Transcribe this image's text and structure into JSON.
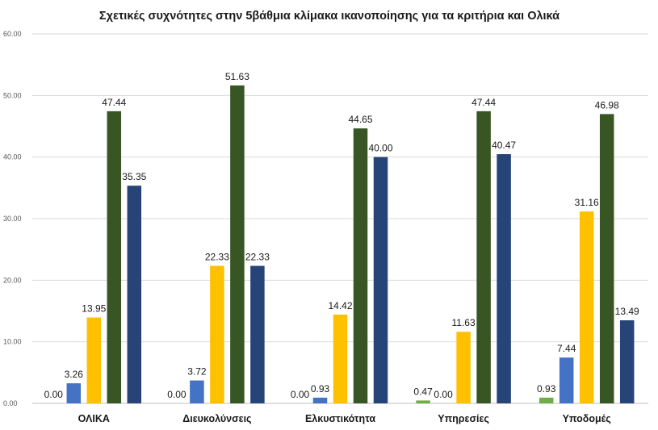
{
  "chart_data": {
    "type": "bar",
    "title": "Σχετικές συχνότητες στην 5βάθμια κλίμακα ικανοποίησης για τα κριτήρια και Ολικά",
    "xlabel": "",
    "ylabel": "",
    "ylim": [
      0,
      60
    ],
    "yticks": [
      "0.00",
      "10.00",
      "20.00",
      "30.00",
      "40.00",
      "50.00",
      "60.00"
    ],
    "ytick_values": [
      0,
      10,
      20,
      30,
      40,
      50,
      60
    ],
    "grid": true,
    "legend": "none",
    "categories": [
      "ΟΛΙΚΑ",
      "Διευκολύνσεις",
      "Ελκυστικότητα",
      "Υπηρεσίες",
      "Υποδομές"
    ],
    "series": [
      {
        "color": "#70ad47",
        "values": [
          0.0,
          0.0,
          0.0,
          0.47,
          0.93
        ],
        "labels": [
          "0.00",
          "0.00",
          "0.00",
          "0.47",
          "0.93"
        ]
      },
      {
        "color": "#4472c4",
        "values": [
          3.26,
          3.72,
          0.93,
          0.0,
          7.44
        ],
        "labels": [
          "3.26",
          "3.72",
          "0.93",
          "0.00",
          "7.44"
        ]
      },
      {
        "color": "#ffc000",
        "values": [
          13.95,
          22.33,
          14.42,
          11.63,
          31.16
        ],
        "labels": [
          "13.95",
          "22.33",
          "14.42",
          "11.63",
          "31.16"
        ]
      },
      {
        "color": "#375623",
        "values": [
          47.44,
          51.63,
          44.65,
          47.44,
          46.98
        ],
        "labels": [
          "47.44",
          "51.63",
          "44.65",
          "47.44",
          "46.98"
        ]
      },
      {
        "color": "#264478",
        "values": [
          35.35,
          22.33,
          40.0,
          40.47,
          13.49
        ],
        "labels": [
          "35.35",
          "22.33",
          "40.00",
          "40.47",
          "13.49"
        ]
      }
    ]
  }
}
